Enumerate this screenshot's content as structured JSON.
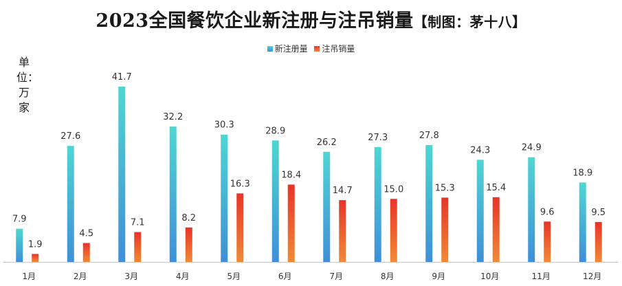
{
  "title": "2023全国餐饮企业新注册与注吊销量",
  "subtitle": "【制图：茅十八】",
  "unit_label": "单位：万家",
  "colors": {
    "new_top": "#4fd6d1",
    "new_bottom": "#3f8fd8",
    "cancel_top": "#e8342a",
    "cancel_bottom": "#f08a35"
  },
  "chart_data": {
    "type": "bar",
    "categories": [
      "1月",
      "2月",
      "3月",
      "4月",
      "5月",
      "6月",
      "7月",
      "8月",
      "9月",
      "10月",
      "11月",
      "12月"
    ],
    "series": [
      {
        "name": "新注册量",
        "values": [
          7.9,
          27.6,
          41.7,
          32.2,
          30.3,
          28.9,
          26.2,
          27.3,
          27.8,
          24.3,
          24.9,
          18.9
        ]
      },
      {
        "name": "注吊销量",
        "values": [
          1.9,
          4.5,
          7.1,
          8.2,
          16.3,
          18.4,
          14.7,
          15.0,
          15.3,
          15.4,
          9.6,
          9.5
        ]
      }
    ],
    "value_labels": [
      [
        "7.9",
        "27.6",
        "41.7",
        "32.2",
        "30.3",
        "28.9",
        "26.2",
        "27.3",
        "27.8",
        "24.3",
        "24.9",
        "18.9"
      ],
      [
        "1.9",
        "4.5",
        "7.1",
        "8.2",
        "16.3",
        "18.4",
        "14.7",
        "15.0",
        "15.3",
        "15.4",
        "9.6",
        "9.5"
      ]
    ],
    "ylim": [
      0,
      41.7
    ],
    "legend_position": "top-center",
    "grid": false
  }
}
